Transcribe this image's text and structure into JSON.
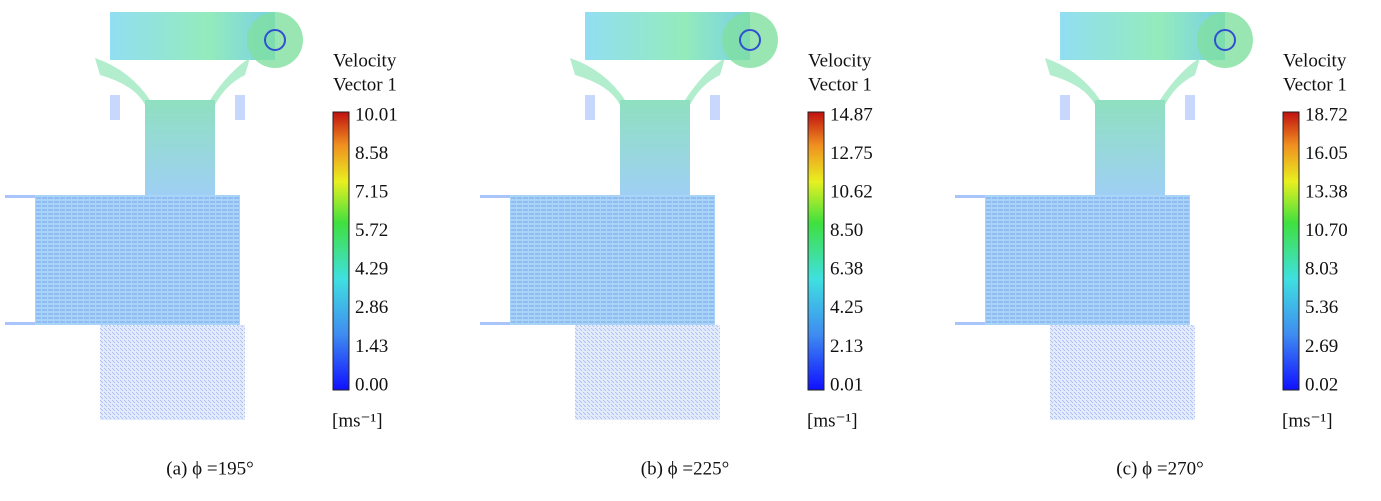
{
  "panels": [
    {
      "legend_title": [
        "Velocity",
        "Vector 1"
      ],
      "ticks": [
        "10.01",
        "8.58",
        "7.15",
        "5.72",
        "4.29",
        "2.86",
        "1.43",
        "0.00"
      ],
      "unit": "[ms⁻¹]",
      "caption": "(a)  ϕ =195°"
    },
    {
      "legend_title": [
        "Velocity",
        "Vector 1"
      ],
      "ticks": [
        "14.87",
        "12.75",
        "10.62",
        "8.50",
        "6.38",
        "4.25",
        "2.13",
        "0.01"
      ],
      "unit": "[ms⁻¹]",
      "caption": "(b)  ϕ =225°"
    },
    {
      "legend_title": [
        "Velocity",
        "Vector 1"
      ],
      "ticks": [
        "18.72",
        "16.05",
        "13.38",
        "10.70",
        "8.03",
        "5.36",
        "2.69",
        "0.02"
      ],
      "unit": "[ms⁻¹]",
      "caption": "(c)  ϕ =270°"
    }
  ]
}
